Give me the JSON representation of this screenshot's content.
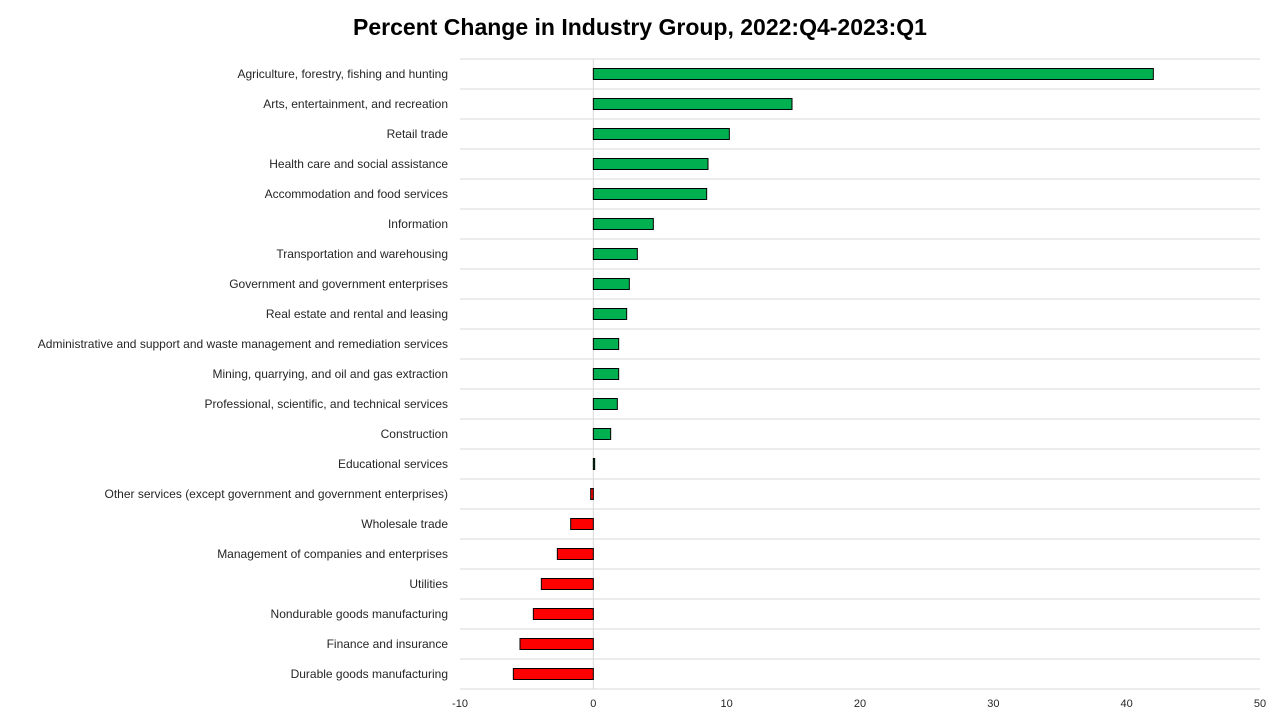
{
  "chart_data": {
    "type": "bar",
    "orientation": "horizontal",
    "title": "Percent Change in Industry Group, 2022:Q4-2023:Q1",
    "xlabel": "",
    "ylabel": "",
    "xlim": [
      -10,
      50
    ],
    "xticks": [
      -10,
      0,
      10,
      20,
      30,
      40,
      50
    ],
    "grid": "horizontal",
    "legend": "none",
    "positive_color": "#00b050",
    "negative_color": "#ff0000",
    "categories": [
      "Agriculture, forestry, fishing and hunting",
      "Arts, entertainment, and recreation",
      "Retail trade",
      "Health care and social assistance",
      "Accommodation and food services",
      "Information",
      "Transportation and warehousing",
      "Government and government enterprises",
      "Real estate and rental and leasing",
      "Administrative and support and waste management and remediation services",
      "Mining, quarrying, and oil and gas extraction",
      "Professional, scientific, and technical services",
      "Construction",
      "Educational services",
      "Other services (except government and government enterprises)",
      "Wholesale trade",
      "Management of companies and enterprises",
      "Utilities",
      "Nondurable goods manufacturing",
      "Finance and insurance",
      "Durable goods manufacturing"
    ],
    "values": [
      42.0,
      14.9,
      10.2,
      8.6,
      8.5,
      4.5,
      3.3,
      2.7,
      2.5,
      1.9,
      1.9,
      1.8,
      1.3,
      0.1,
      -0.2,
      -1.7,
      -2.7,
      -3.9,
      -4.5,
      -5.5,
      -6.0
    ]
  }
}
